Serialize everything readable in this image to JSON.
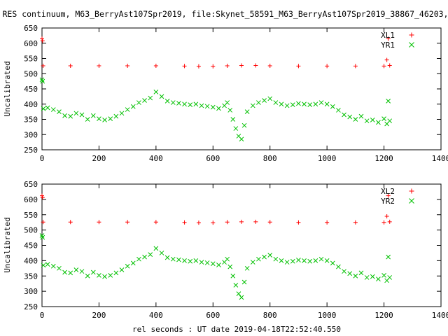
{
  "title": "RES continuum, M63_BerryAst107Spr2019, file:Skynet_58591_M63_BerryAst107Spr2019_38867_46203,",
  "xlabel": "rel seconds : UT date 2019-04-18T22:52:40.550",
  "colors": {
    "xl": "#ff0000",
    "yr": "#00c000",
    "axis": "#000000"
  },
  "chart_data": [
    {
      "type": "scatter",
      "ylabel": "Uncalibrated",
      "xlim": [
        0,
        1400
      ],
      "ylim": [
        250,
        650
      ],
      "xticks": [
        0,
        200,
        400,
        600,
        800,
        1000,
        1200,
        1400
      ],
      "yticks": [
        250,
        300,
        350,
        400,
        450,
        500,
        550,
        600,
        650
      ],
      "grid": false,
      "legend": "top-right",
      "series": [
        {
          "name": "XL1",
          "marker": "plus",
          "color": "#ff0000",
          "x": [
            0,
            2,
            4,
            100,
            200,
            300,
            400,
            500,
            550,
            600,
            650,
            700,
            750,
            800,
            900,
            1000,
            1100,
            1200,
            1210,
            1215,
            1220
          ],
          "y": [
            615,
            608,
            526,
            526,
            526,
            526,
            526,
            525,
            524,
            524,
            526,
            527,
            527,
            526,
            525,
            525,
            525,
            525,
            545,
            615,
            527
          ]
        },
        {
          "name": "YR1",
          "marker": "cross",
          "color": "#00c000",
          "x": [
            0,
            2,
            5,
            20,
            40,
            60,
            80,
            100,
            120,
            140,
            160,
            180,
            200,
            220,
            240,
            260,
            280,
            300,
            320,
            340,
            360,
            380,
            400,
            420,
            440,
            460,
            480,
            500,
            520,
            540,
            560,
            580,
            600,
            620,
            640,
            650,
            660,
            670,
            680,
            690,
            700,
            710,
            720,
            740,
            760,
            780,
            800,
            820,
            840,
            860,
            880,
            900,
            920,
            940,
            960,
            980,
            1000,
            1020,
            1040,
            1060,
            1080,
            1100,
            1120,
            1140,
            1160,
            1180,
            1200,
            1210,
            1215,
            1220
          ],
          "y": [
            480,
            475,
            385,
            388,
            382,
            375,
            362,
            360,
            370,
            365,
            350,
            362,
            352,
            348,
            352,
            360,
            370,
            382,
            392,
            405,
            412,
            420,
            440,
            425,
            410,
            405,
            403,
            400,
            398,
            400,
            395,
            393,
            390,
            386,
            395,
            405,
            380,
            350,
            320,
            295,
            285,
            330,
            375,
            395,
            405,
            412,
            418,
            405,
            400,
            395,
            398,
            402,
            400,
            398,
            400,
            405,
            400,
            392,
            380,
            365,
            358,
            350,
            360,
            345,
            348,
            340,
            352,
            335,
            410,
            345
          ]
        }
      ]
    },
    {
      "type": "scatter",
      "ylabel": "Uncalibrated",
      "xlim": [
        0,
        1400
      ],
      "ylim": [
        250,
        650
      ],
      "xticks": [
        0,
        200,
        400,
        600,
        800,
        1000,
        1200,
        1400
      ],
      "yticks": [
        250,
        300,
        350,
        400,
        450,
        500,
        550,
        600,
        650
      ],
      "grid": false,
      "legend": "top-right",
      "series": [
        {
          "name": "XL2",
          "marker": "plus",
          "color": "#ff0000",
          "x": [
            0,
            2,
            4,
            100,
            200,
            300,
            400,
            500,
            550,
            600,
            650,
            700,
            750,
            800,
            900,
            1000,
            1100,
            1200,
            1210,
            1215,
            1220
          ],
          "y": [
            612,
            606,
            526,
            526,
            526,
            526,
            526,
            525,
            524,
            524,
            526,
            527,
            527,
            526,
            525,
            525,
            525,
            525,
            545,
            612,
            527
          ]
        },
        {
          "name": "YR2",
          "marker": "cross",
          "color": "#00c000",
          "x": [
            0,
            2,
            5,
            20,
            40,
            60,
            80,
            100,
            120,
            140,
            160,
            180,
            200,
            220,
            240,
            260,
            280,
            300,
            320,
            340,
            360,
            380,
            400,
            420,
            440,
            460,
            480,
            500,
            520,
            540,
            560,
            580,
            600,
            620,
            640,
            650,
            660,
            670,
            680,
            690,
            700,
            710,
            720,
            740,
            760,
            780,
            800,
            820,
            840,
            860,
            880,
            900,
            920,
            940,
            960,
            980,
            1000,
            1020,
            1040,
            1060,
            1080,
            1100,
            1120,
            1140,
            1160,
            1180,
            1200,
            1210,
            1215,
            1220
          ],
          "y": [
            482,
            476,
            385,
            388,
            382,
            375,
            362,
            360,
            370,
            365,
            350,
            362,
            352,
            348,
            352,
            360,
            370,
            382,
            392,
            405,
            412,
            420,
            440,
            425,
            410,
            405,
            403,
            400,
            398,
            400,
            395,
            393,
            390,
            386,
            395,
            405,
            380,
            350,
            320,
            292,
            280,
            330,
            375,
            395,
            405,
            412,
            418,
            405,
            400,
            395,
            398,
            402,
            400,
            398,
            400,
            405,
            400,
            392,
            380,
            365,
            358,
            350,
            360,
            345,
            348,
            340,
            352,
            335,
            412,
            345
          ]
        }
      ]
    }
  ]
}
